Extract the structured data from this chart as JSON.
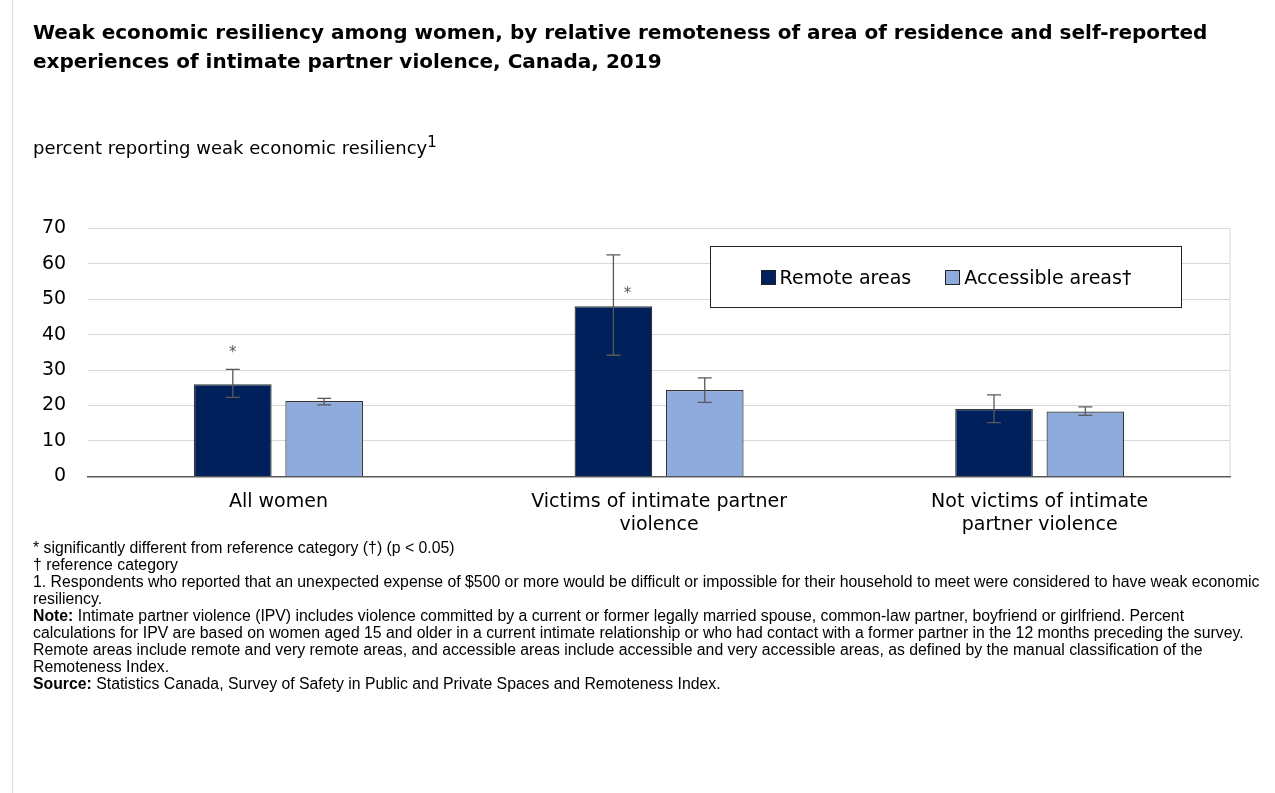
{
  "chart_data": {
    "type": "bar",
    "title": "Weak economic resiliency among women, by relative remoteness of area of residence and self-reported experiences of intimate partner violence, Canada, 2019",
    "ylabel": "percent reporting weak economic resiliency$^{1}$",
    "categories": [
      "All women",
      "Victims of intimate partner violence",
      "Not victims of intimate partner violence"
    ],
    "series": [
      {
        "name": "Remote areas",
        "color": "#00205b",
        "values": [
          26.0,
          48.0,
          19.0
        ],
        "errors": [
          [
            22.3,
            30.2
          ],
          [
            34.2,
            62.5
          ],
          [
            15.2,
            23.0
          ]
        ],
        "value_labels": [
          "*",
          "*",
          null
        ]
      },
      {
        "name": "Accessible areas†",
        "color": "#8faadc",
        "values": [
          21.3,
          24.4,
          18.3
        ],
        "errors": [
          [
            20.2,
            22.0
          ],
          [
            20.9,
            27.8
          ],
          [
            17.2,
            19.6
          ]
        ]
      }
    ],
    "ylim": [
      0,
      70
    ],
    "yticks": [
      0,
      10,
      20,
      30,
      40,
      50,
      60,
      70
    ],
    "grid": "y",
    "legend": "top right",
    "annotations": [
      "* significantly different from reference category (†) (p < 0.05)",
      "† reference category",
      "1. Respondents who reported that an unexpected expense of $500 or more would be difficult or impossible for their household to meet were considered to have weak economic resiliency.",
      "Note: Intimate partner violence (IPV) includes violence committed by a current or former legally married spouse, common-law partner, boyfriend or girlfriend. Percent calculations for IPV are based on women aged 15 and older in a current intimate relationship or who had contact with a former partner in the 12 months preceding the survey. Remote areas include remote and very remote areas, and accessible areas include accessible and very accessible areas, as defined by the manual classification of the Remoteness Index.",
      "Source: Statistics Canada, Survey of Safety in Public and Private Spaces and Remoteness Index."
    ]
  }
}
